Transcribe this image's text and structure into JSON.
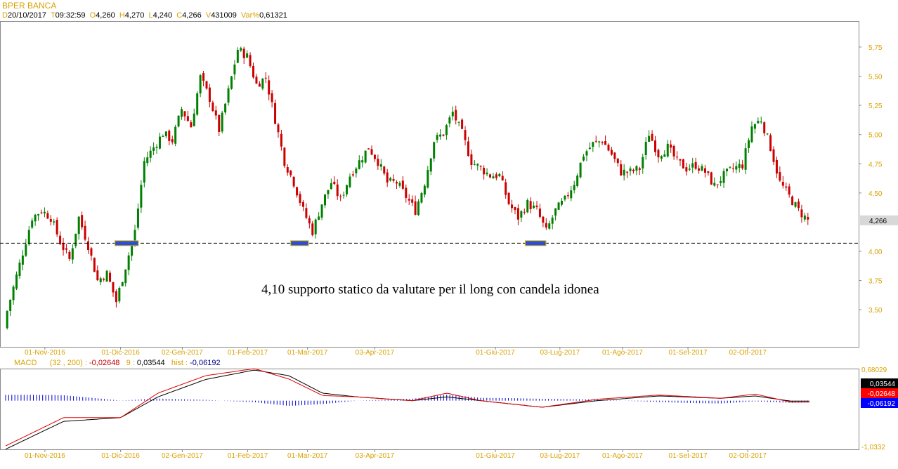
{
  "header": {
    "title": "BPER BANCA",
    "d_label": "D",
    "date": "20/10/2017",
    "t_label": "T",
    "time": "09:32:59",
    "o_label": "O",
    "open": "4,260",
    "h_label": "H",
    "high": "4,270",
    "l_label": "L",
    "low": "4,240",
    "c_label": "C",
    "close": "4,266",
    "v_label": "V",
    "volume": "431009",
    "var_label": "Var%",
    "var": "0,61321"
  },
  "chart_data": [
    {
      "type": "candlestick",
      "title": "BPER BANCA",
      "ylim": [
        3.2,
        6.0
      ],
      "y_ticks": [
        {
          "v": 5.75,
          "label": "5,75"
        },
        {
          "v": 5.5,
          "label": "5,50"
        },
        {
          "v": 5.25,
          "label": "5,25"
        },
        {
          "v": 5.0,
          "label": "5,00"
        },
        {
          "v": 4.75,
          "label": "4,75"
        },
        {
          "v": 4.5,
          "label": "4,50"
        },
        {
          "v": 4.0,
          "label": "4,00"
        },
        {
          "v": 3.75,
          "label": "3,75"
        },
        {
          "v": 3.5,
          "label": "3,50"
        }
      ],
      "x_ticks": [
        {
          "i": 4.2,
          "label": "01-Nov-2016"
        },
        {
          "i": 12.3,
          "label": "01-Dic-2016"
        },
        {
          "i": 18.9,
          "label": "02-Gen-2017"
        },
        {
          "i": 25.9,
          "label": "01-Feb-2017"
        },
        {
          "i": 32.3,
          "label": "01-Mar-2017"
        },
        {
          "i": 39.5,
          "label": "03-Apr-2017"
        },
        {
          "i": 52.4,
          "label": "01-Giu-2017"
        },
        {
          "i": 59.3,
          "label": "03-Lug-2017"
        },
        {
          "i": 66.0,
          "label": "01-Ago-2017"
        },
        {
          "i": 73.0,
          "label": "01-Set-2017"
        },
        {
          "i": 79.4,
          "label": "02-Ott-2017"
        }
      ],
      "closes": [
        3.39,
        3.69,
        3.99,
        4.29,
        4.35,
        4.29,
        4.08,
        3.93,
        4.29,
        4.05,
        3.75,
        3.81,
        3.57,
        3.87,
        4.17,
        4.77,
        4.89,
        5.01,
        4.95,
        5.22,
        5.07,
        5.49,
        5.31,
        5.04,
        5.37,
        5.73,
        5.67,
        5.43,
        5.49,
        5.13,
        4.77,
        4.59,
        4.35,
        4.17,
        4.41,
        4.59,
        4.44,
        4.65,
        4.77,
        4.89,
        4.77,
        4.59,
        4.59,
        4.47,
        4.35,
        4.59,
        4.95,
        5.01,
        5.19,
        5.01,
        4.77,
        4.71,
        4.65,
        4.65,
        4.41,
        4.29,
        4.41,
        4.35,
        4.17,
        4.35,
        4.44,
        4.59,
        4.83,
        4.92,
        4.95,
        4.83,
        4.68,
        4.68,
        4.71,
        5.01,
        4.83,
        4.89,
        4.77,
        4.71,
        4.74,
        4.68,
        4.56,
        4.65,
        4.71,
        4.74,
        5.07,
        5.13,
        4.89,
        4.59,
        4.47,
        4.35,
        4.266
      ],
      "last_price": {
        "v": 4.266,
        "label": "4,266"
      },
      "support_level": 4.07,
      "support_zones": [
        {
          "from": 11.7,
          "to": 14.2
        },
        {
          "from": 30.5,
          "to": 32.4
        },
        {
          "from": 55.6,
          "to": 57.8
        }
      ],
      "annotation": "4,10 supporto statico da valutare per il long con candela idonea",
      "colors": {
        "up": "#008000",
        "down": "#cc0000",
        "zone": "#2a4fd8",
        "zone_border": "#d8b000"
      }
    },
    {
      "type": "line",
      "title": "MACD",
      "params": "(32 , 200) :",
      "macd_value": "-0,02648",
      "signal_label": "9 :",
      "signal_value": "0,03544",
      "hist_label": "hist :",
      "hist_value": "-0,06192",
      "ylim": [
        -1.0332,
        0.68029
      ],
      "y_top_label": "0,68029",
      "y_bottom_label": "-1,0332",
      "sample_i": [
        0,
        6.2,
        12.3,
        16.3,
        21.4,
        26.6,
        30.3,
        33.9,
        37.6,
        43.5,
        47.2,
        50.8,
        57.4,
        63.3,
        69.9,
        76.5,
        80.2,
        84
      ],
      "black": [
        -1.03,
        -0.44,
        -0.36,
        0.08,
        0.45,
        0.65,
        0.53,
        0.16,
        0.08,
        0,
        0.08,
        0,
        -0.14,
        0,
        0.1,
        0.05,
        0.1,
        -0.01
      ],
      "red": [
        -0.96,
        -0.36,
        -0.36,
        0.16,
        0.53,
        0.68,
        0.46,
        0.11,
        0.08,
        0,
        0.16,
        0,
        -0.14,
        0.03,
        0.12,
        0.05,
        0.14,
        -0.03
      ],
      "badges": [
        {
          "label": "0,03544",
          "color": "#000000"
        },
        {
          "label": "-0,02648",
          "color": "#ff0000"
        },
        {
          "label": "-0,06192",
          "color": "#0000ff"
        }
      ]
    }
  ]
}
